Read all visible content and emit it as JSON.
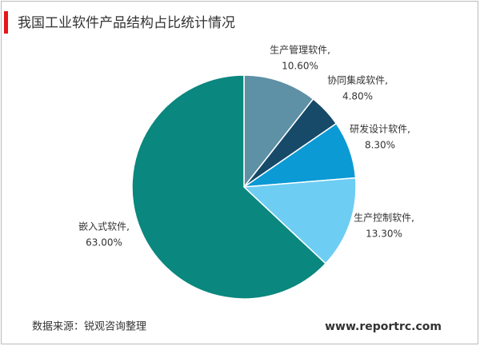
{
  "chart_data": {
    "type": "pie",
    "title": "我国工业软件产品结构占比统计情况",
    "categories": [
      "生产管理软件,",
      "协同集成软件,",
      "研发设计软件,",
      "生产控制软件,",
      "嵌入式软件,"
    ],
    "values": [
      10.6,
      4.8,
      8.3,
      13.3,
      63.0
    ],
    "value_labels": [
      "10.60%",
      "4.80%",
      "8.30%",
      "13.30%",
      "63.00%"
    ],
    "colors": [
      "#5e90a6",
      "#174a68",
      "#0b9ad4",
      "#6ecdf2",
      "#0a877e"
    ],
    "source": "数据来源：锐观咨询整理",
    "website": "www.reportrc.com"
  }
}
